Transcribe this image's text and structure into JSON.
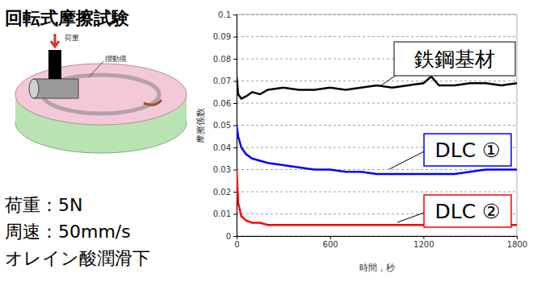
{
  "title": "回転式摩擦試験",
  "diagram": {
    "load_label": "荷重",
    "track_label": "摺動痕"
  },
  "conditions": [
    "荷重：5N",
    "周速：50mm/s",
    "オレイン酸潤滑下"
  ],
  "chart_data": {
    "type": "line",
    "x_label": "時間，秒",
    "y_label": "摩擦係数",
    "x": [
      0,
      10,
      30,
      60,
      100,
      150,
      200,
      300,
      400,
      500,
      600,
      700,
      800,
      900,
      1000,
      1100,
      1200,
      1250,
      1300,
      1400,
      1500,
      1600,
      1700,
      1800
    ],
    "series": [
      {
        "name": "鉄鋼基材",
        "color": "#000000",
        "values": [
          0.072,
          0.064,
          0.062,
          0.063,
          0.065,
          0.064,
          0.066,
          0.067,
          0.066,
          0.066,
          0.067,
          0.066,
          0.067,
          0.068,
          0.067,
          0.068,
          0.069,
          0.072,
          0.068,
          0.068,
          0.069,
          0.069,
          0.068,
          0.069
        ]
      },
      {
        "name": "DLC ①",
        "color": "#0000ff",
        "values": [
          0.05,
          0.045,
          0.04,
          0.037,
          0.035,
          0.034,
          0.033,
          0.032,
          0.031,
          0.03,
          0.03,
          0.029,
          0.029,
          0.028,
          0.028,
          0.028,
          0.028,
          0.028,
          0.028,
          0.028,
          0.029,
          0.03,
          0.03,
          0.03
        ]
      },
      {
        "name": "DLC ②",
        "color": "#ff0000",
        "values": [
          0.03,
          0.015,
          0.009,
          0.007,
          0.006,
          0.006,
          0.005,
          0.005,
          0.005,
          0.005,
          0.005,
          0.005,
          0.005,
          0.005,
          0.005,
          0.005,
          0.005,
          0.005,
          0.005,
          0.005,
          0.005,
          0.005,
          0.005,
          0.005
        ]
      }
    ],
    "xlim": [
      0,
      1800
    ],
    "xticks": [
      0,
      600,
      1200,
      1800
    ],
    "ylim": [
      0,
      0.1
    ],
    "yticks": [
      0,
      0.01,
      0.02,
      0.03,
      0.04,
      0.05,
      0.06,
      0.07,
      0.08,
      0.09,
      0.1
    ],
    "grid": true
  }
}
